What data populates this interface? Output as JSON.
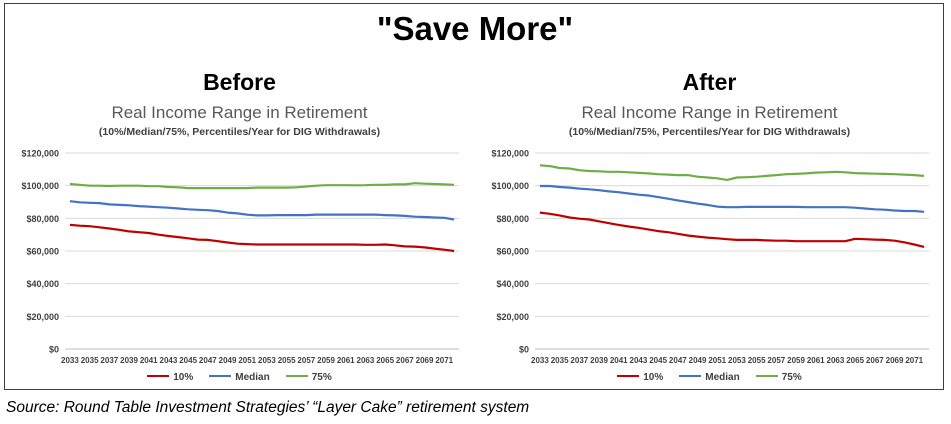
{
  "main_title": "\"Save More\"",
  "source": "Source: Round Table Investment Strategies’ “Layer Cake” retirement system",
  "colors": {
    "p10": "#c00000",
    "median": "#4472c4",
    "p75": "#70ad47",
    "grid": "#d9d9d9",
    "axis": "#bfbfbf"
  },
  "chart_data": [
    {
      "type": "line",
      "panel_heading": "Before",
      "title": "Real Income Range in Retirement",
      "subtitle": "(10%/Median/75%, Percentiles/Year for DIG Withdrawals)",
      "ylim": [
        0,
        120000
      ],
      "yticks": [
        "$0",
        "$20,000",
        "$40,000",
        "$60,000",
        "$80,000",
        "$100,000",
        "$120,000"
      ],
      "xtick_labels": [
        "2033",
        "2035",
        "2037",
        "2039",
        "2041",
        "2043",
        "2045",
        "2047",
        "2049",
        "2051",
        "2053",
        "2055",
        "2057",
        "2059",
        "2061",
        "2063",
        "2065",
        "2067",
        "2069",
        "2071"
      ],
      "x_start": 2033,
      "x_end": 2072,
      "legend_position": "bottom",
      "series": [
        {
          "name": "10%",
          "color": "#c00000",
          "values": [
            76000,
            75500,
            75200,
            74500,
            73800,
            73000,
            72000,
            71500,
            71000,
            70000,
            69200,
            68500,
            67800,
            67000,
            66800,
            66000,
            65200,
            64500,
            64200,
            64000,
            64000,
            64000,
            64000,
            64000,
            64000,
            64000,
            64000,
            64000,
            64000,
            64000,
            63800,
            63800,
            64000,
            63500,
            62800,
            62700,
            62200,
            61500,
            60800,
            60000
          ]
        },
        {
          "name": "Median",
          "color": "#4472c4",
          "values": [
            90500,
            89800,
            89500,
            89300,
            88500,
            88200,
            88000,
            87500,
            87200,
            86800,
            86500,
            86000,
            85500,
            85200,
            85000,
            84500,
            83500,
            83000,
            82200,
            81800,
            81800,
            82000,
            82000,
            82000,
            82000,
            82300,
            82300,
            82300,
            82300,
            82300,
            82300,
            82300,
            82000,
            81800,
            81500,
            81000,
            80800,
            80500,
            80300,
            79300
          ]
        },
        {
          "name": "75%",
          "color": "#70ad47",
          "values": [
            101000,
            100500,
            100000,
            100000,
            99800,
            100000,
            100000,
            100000,
            99700,
            99700,
            99200,
            99000,
            98500,
            98500,
            98500,
            98500,
            98500,
            98500,
            98500,
            98800,
            98800,
            98800,
            98800,
            99000,
            99500,
            100000,
            100300,
            100300,
            100300,
            100200,
            100300,
            100500,
            100500,
            100800,
            100800,
            101500,
            101200,
            101000,
            100800,
            100500
          ]
        }
      ]
    },
    {
      "type": "line",
      "panel_heading": "After",
      "title": "Real Income Range in Retirement",
      "subtitle": "(10%/Median/75%, Percentiles/Year for DIG Withdrawals)",
      "ylim": [
        0,
        120000
      ],
      "yticks": [
        "$0",
        "$20,000",
        "$40,000",
        "$60,000",
        "$80,000",
        "$100,000",
        "$120,000"
      ],
      "xtick_labels": [
        "2033",
        "2035",
        "2037",
        "2039",
        "2041",
        "2043",
        "2045",
        "2047",
        "2049",
        "2051",
        "2053",
        "2055",
        "2057",
        "2059",
        "2061",
        "2063",
        "2065",
        "2067",
        "2069",
        "2071"
      ],
      "x_start": 2033,
      "x_end": 2072,
      "legend_position": "bottom",
      "series": [
        {
          "name": "10%",
          "color": "#c00000",
          "values": [
            83500,
            82800,
            81800,
            80500,
            79800,
            79300,
            78200,
            77000,
            76000,
            75000,
            74200,
            73200,
            72200,
            71500,
            70500,
            69500,
            68800,
            68200,
            67800,
            67200,
            66800,
            66800,
            66800,
            66500,
            66300,
            66300,
            66000,
            66000,
            66000,
            66000,
            66000,
            66000,
            67500,
            67200,
            67000,
            66800,
            66300,
            65300,
            64000,
            62500
          ]
        },
        {
          "name": "Median",
          "color": "#4472c4",
          "values": [
            99800,
            99800,
            99200,
            98800,
            98200,
            97800,
            97200,
            96500,
            96000,
            95200,
            94500,
            94000,
            93000,
            92000,
            91000,
            90000,
            89000,
            88200,
            87200,
            86800,
            86800,
            87000,
            87000,
            87000,
            87000,
            87000,
            87000,
            86800,
            86800,
            86800,
            86800,
            86800,
            86500,
            86000,
            85500,
            85300,
            84800,
            84500,
            84500,
            84000
          ]
        },
        {
          "name": "75%",
          "color": "#70ad47",
          "values": [
            112500,
            112000,
            110800,
            110500,
            109500,
            109000,
            108800,
            108500,
            108500,
            108200,
            107800,
            107500,
            107000,
            106800,
            106500,
            106500,
            105500,
            105000,
            104500,
            103500,
            105000,
            105200,
            105500,
            106000,
            106500,
            107000,
            107200,
            107500,
            108000,
            108200,
            108500,
            108200,
            107700,
            107500,
            107300,
            107200,
            107000,
            106800,
            106500,
            106000
          ]
        }
      ]
    }
  ]
}
